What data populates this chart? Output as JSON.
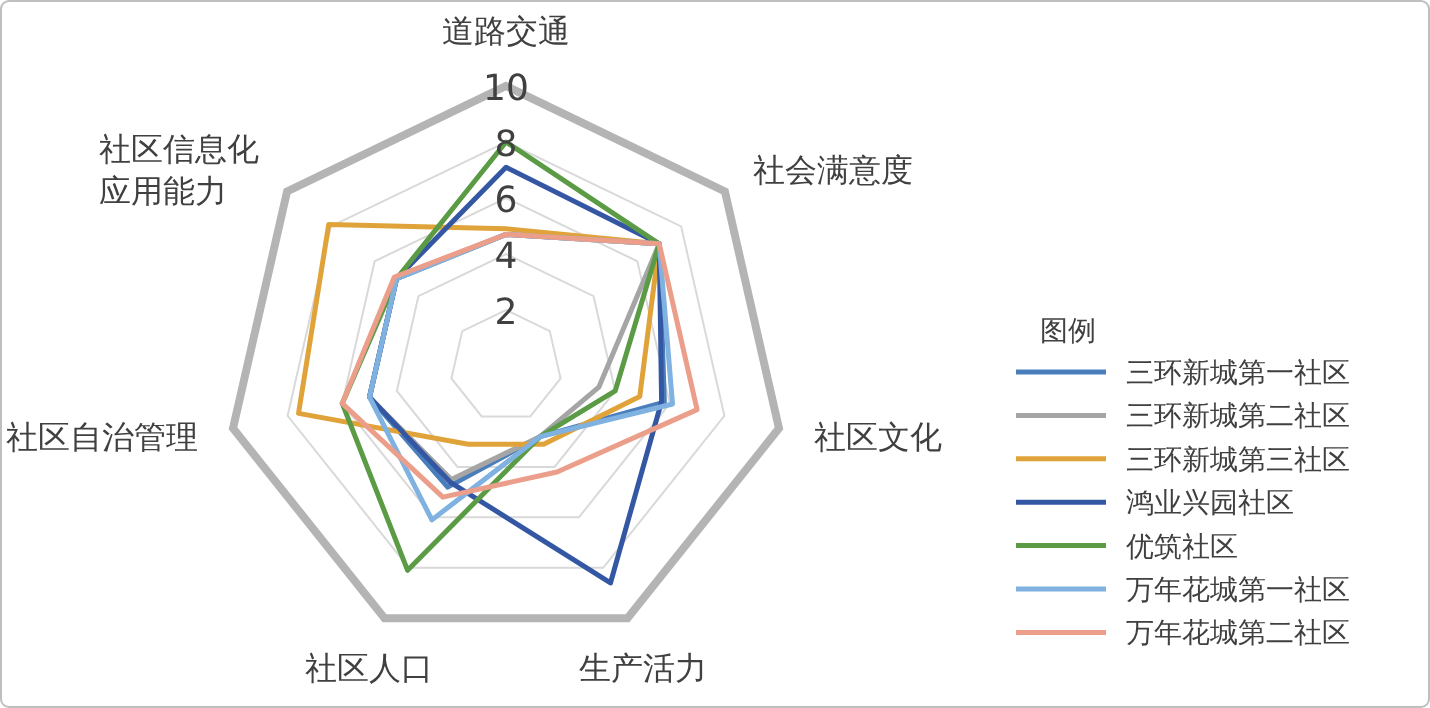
{
  "chart_data": {
    "type": "radar",
    "categories": [
      "道路交通",
      "社会满意度",
      "社区文化",
      "生产活力",
      "社区人口",
      "社区自治管理",
      "社区信息化应用能力"
    ],
    "series": [
      {
        "name": "三环新城第一社区",
        "color": "#4a7ebb",
        "values": [
          4.7,
          7.0,
          5.8,
          2.8,
          4.8,
          5.0,
          5.0
        ]
      },
      {
        "name": "三环新城第二社区",
        "color": "#a5a5a5",
        "values": [
          4.7,
          7.0,
          3.4,
          2.8,
          4.5,
          5.0,
          5.0
        ]
      },
      {
        "name": "三环新城第三社区",
        "color": "#e0a33a",
        "values": [
          4.9,
          7.0,
          4.9,
          3.1,
          3.1,
          7.6,
          8.1
        ]
      },
      {
        "name": "鸿业兴园社区",
        "color": "#3457a3",
        "values": [
          7.1,
          7.0,
          5.7,
          8.6,
          4.6,
          5.0,
          5.0
        ]
      },
      {
        "name": "优筑社区",
        "color": "#5b9b45",
        "values": [
          8.0,
          7.0,
          4.0,
          2.8,
          8.1,
          6.0,
          5.0
        ]
      },
      {
        "name": "万年花城第一社区",
        "color": "#7fb2e0",
        "values": [
          4.7,
          7.0,
          6.1,
          2.8,
          6.1,
          5.0,
          5.0
        ]
      },
      {
        "name": "万年花城第二社区",
        "color": "#eb9e8a",
        "values": [
          4.7,
          7.0,
          7.0,
          4.2,
          5.2,
          6.0,
          5.1
        ]
      }
    ],
    "ylim": [
      0,
      10
    ],
    "yticks": [
      2,
      4,
      6,
      8,
      10
    ],
    "grid": true,
    "legend": "right",
    "legend_title": "图例"
  }
}
